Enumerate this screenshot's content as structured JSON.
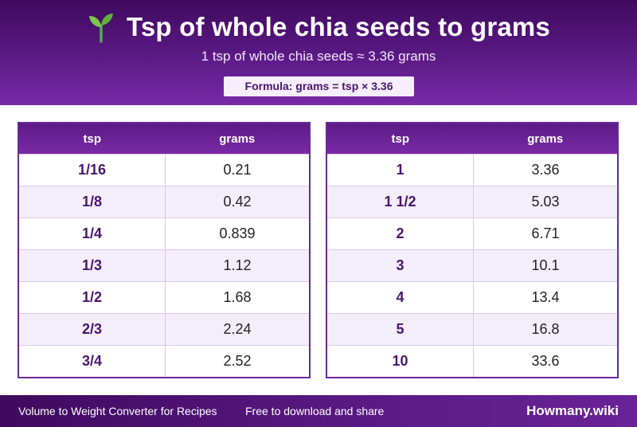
{
  "header": {
    "icon": "sprout-icon",
    "title": "Tsp of whole chia seeds to grams",
    "subtitle": "1 tsp of whole chia seeds ≈ 3.36 grams",
    "formula": "Formula: grams = tsp × 3.36"
  },
  "tables": [
    {
      "headers": [
        "tsp",
        "grams"
      ],
      "rows": [
        [
          "1/16",
          "0.21"
        ],
        [
          "1/8",
          "0.42"
        ],
        [
          "1/4",
          "0.839"
        ],
        [
          "1/3",
          "1.12"
        ],
        [
          "1/2",
          "1.68"
        ],
        [
          "2/3",
          "2.24"
        ],
        [
          "3/4",
          "2.52"
        ]
      ]
    },
    {
      "headers": [
        "tsp",
        "grams"
      ],
      "rows": [
        [
          "1",
          "3.36"
        ],
        [
          "1 1/2",
          "5.03"
        ],
        [
          "2",
          "6.71"
        ],
        [
          "3",
          "10.1"
        ],
        [
          "4",
          "13.4"
        ],
        [
          "5",
          "16.8"
        ],
        [
          "10",
          "33.6"
        ]
      ]
    }
  ],
  "footer": {
    "left": "Volume to Weight Converter for Recipes",
    "middle": "Free to download and share",
    "brand": "Howmany.wiki"
  },
  "colors": {
    "header_bg": "#5b1a86",
    "accent_text": "#4a1570",
    "row_alt": "#f4eefa"
  }
}
